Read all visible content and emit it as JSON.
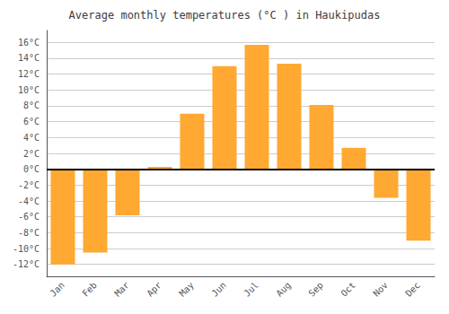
{
  "chart_data": {
    "type": "bar",
    "title": "Average monthly temperatures (°C ) in Haukipudas",
    "categories": [
      "Jan",
      "Feb",
      "Mar",
      "Apr",
      "May",
      "Jun",
      "Jul",
      "Aug",
      "Sep",
      "Oct",
      "Nov",
      "Dec"
    ],
    "values": [
      -12,
      -10.5,
      -5.8,
      0.3,
      7.0,
      13.0,
      15.7,
      13.3,
      8.1,
      2.7,
      -3.6,
      -9.0
    ],
    "color": "#FFA832",
    "ylim": [
      -13.5,
      17.5
    ],
    "yticks": [
      {
        "value": -12,
        "label": "-12°C"
      },
      {
        "value": -10,
        "label": "-10°C"
      },
      {
        "value": -8,
        "label": "-8°C"
      },
      {
        "value": -6,
        "label": "-6°C"
      },
      {
        "value": -4,
        "label": "-4°C"
      },
      {
        "value": -2,
        "label": "-2°C"
      },
      {
        "value": 0,
        "label": "0°C"
      },
      {
        "value": 2,
        "label": "2°C"
      },
      {
        "value": 4,
        "label": "4°C"
      },
      {
        "value": 6,
        "label": "6°C"
      },
      {
        "value": 8,
        "label": "8°C"
      },
      {
        "value": 10,
        "label": "10°C"
      },
      {
        "value": 12,
        "label": "12°C"
      },
      {
        "value": 14,
        "label": "14°C"
      },
      {
        "value": 16,
        "label": "16°C"
      }
    ],
    "grid": true
  }
}
